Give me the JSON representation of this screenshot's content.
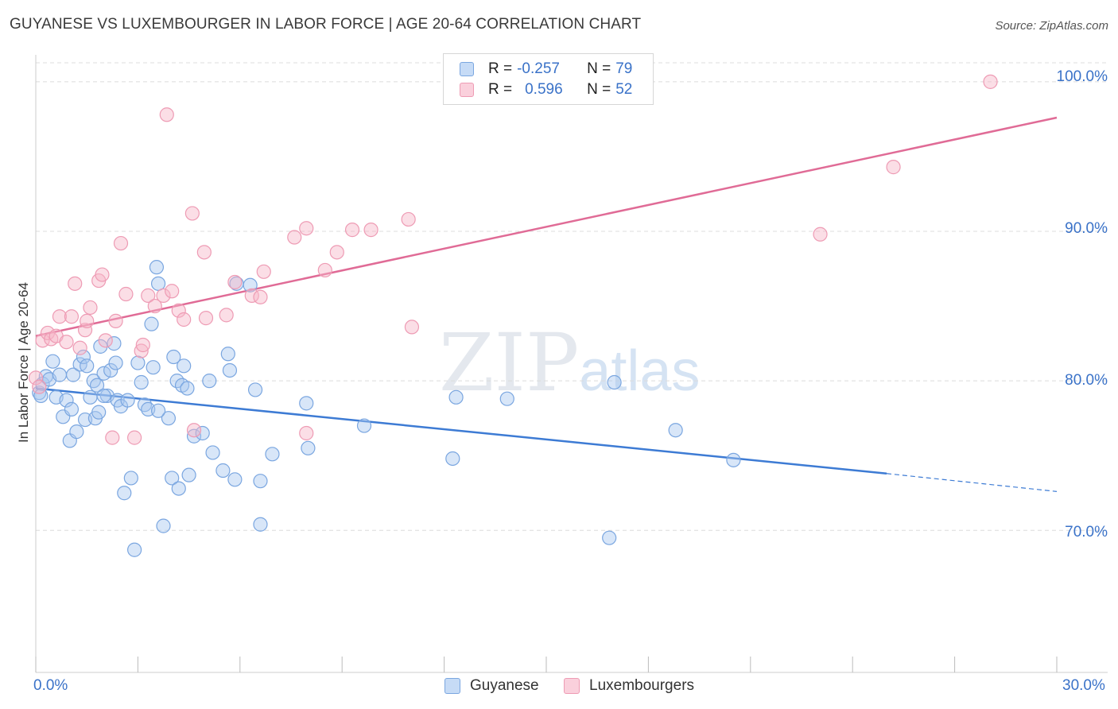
{
  "header": {
    "title": "GUYANESE VS LUXEMBOURGER IN LABOR FORCE | AGE 20-64 CORRELATION CHART",
    "source": "Source: ZipAtlas.com"
  },
  "watermark": {
    "zip": "ZIP",
    "atlas": "atlas"
  },
  "legend": {
    "rows": [
      {
        "r_label": "R =",
        "r_value": "-0.257",
        "n_label": "N =",
        "n_value": "79",
        "color": "#a9c8f0"
      },
      {
        "r_label": "R =",
        "r_value": "0.596",
        "n_label": "N =",
        "n_value": "52",
        "color": "#f7b6c8"
      }
    ]
  },
  "axes": {
    "ylabel": "In Labor Force | Age 20-64",
    "x_ticks": [
      "0.0%",
      "30.0%"
    ],
    "y_ticks": [
      "100.0%",
      "90.0%",
      "80.0%",
      "70.0%"
    ]
  },
  "series_legend": [
    {
      "name": "Guyanese",
      "color": "#a9c8f0"
    },
    {
      "name": "Luxembourgers",
      "color": "#f7b6c8"
    }
  ],
  "chart_data": {
    "type": "scatter",
    "title": "GUYANESE VS LUXEMBOURGER IN LABOR FORCE | AGE 20-64 CORRELATION CHART",
    "xlabel": "",
    "ylabel": "In Labor Force | Age 20-64",
    "xlim": [
      0,
      30
    ],
    "ylim": [
      60.5,
      101.8
    ],
    "y_gridlines": [
      70,
      80,
      90,
      100
    ],
    "grid": true,
    "legend_position": "top-center",
    "series": [
      {
        "name": "Guyanese",
        "color": "#6fa0e0",
        "points": [
          [
            0.1,
            79.2
          ],
          [
            0.2,
            79.8
          ],
          [
            0.3,
            80.3
          ],
          [
            0.4,
            80.1
          ],
          [
            0.5,
            81.3
          ],
          [
            0.6,
            78.9
          ],
          [
            0.7,
            80.4
          ],
          [
            0.8,
            77.6
          ],
          [
            0.9,
            78.7
          ],
          [
            1.0,
            76.0
          ],
          [
            1.05,
            78.1
          ],
          [
            1.1,
            80.4
          ],
          [
            1.2,
            76.6
          ],
          [
            1.3,
            81.1
          ],
          [
            1.4,
            81.6
          ],
          [
            1.45,
            77.4
          ],
          [
            1.5,
            81.0
          ],
          [
            1.6,
            78.9
          ],
          [
            1.7,
            80.0
          ],
          [
            1.75,
            77.5
          ],
          [
            1.8,
            79.7
          ],
          [
            1.85,
            77.9
          ],
          [
            1.9,
            82.3
          ],
          [
            2.0,
            80.5
          ],
          [
            2.1,
            79.0
          ],
          [
            2.2,
            80.7
          ],
          [
            2.3,
            82.5
          ],
          [
            2.35,
            81.2
          ],
          [
            2.4,
            78.7
          ],
          [
            2.5,
            78.3
          ],
          [
            2.6,
            72.5
          ],
          [
            2.7,
            78.7
          ],
          [
            2.8,
            73.5
          ],
          [
            2.9,
            68.7
          ],
          [
            3.0,
            81.2
          ],
          [
            3.1,
            79.9
          ],
          [
            3.2,
            78.4
          ],
          [
            3.3,
            78.1
          ],
          [
            3.4,
            83.8
          ],
          [
            3.45,
            80.9
          ],
          [
            3.55,
            87.6
          ],
          [
            3.6,
            86.5
          ],
          [
            3.75,
            70.3
          ],
          [
            3.9,
            77.5
          ],
          [
            4.0,
            73.5
          ],
          [
            4.05,
            81.6
          ],
          [
            4.15,
            80.0
          ],
          [
            4.2,
            72.8
          ],
          [
            4.3,
            79.7
          ],
          [
            4.35,
            81.0
          ],
          [
            4.45,
            79.5
          ],
          [
            4.5,
            73.7
          ],
          [
            4.65,
            76.3
          ],
          [
            4.9,
            76.5
          ],
          [
            5.1,
            80.0
          ],
          [
            5.2,
            75.2
          ],
          [
            5.5,
            74.0
          ],
          [
            5.7,
            80.7
          ],
          [
            5.65,
            81.8
          ],
          [
            5.85,
            73.4
          ],
          [
            5.9,
            86.5
          ],
          [
            6.3,
            86.4
          ],
          [
            6.45,
            79.4
          ],
          [
            6.6,
            73.3
          ],
          [
            6.6,
            70.4
          ],
          [
            6.95,
            75.1
          ],
          [
            7.95,
            78.5
          ],
          [
            8.0,
            75.5
          ],
          [
            9.65,
            77.0
          ],
          [
            12.25,
            74.8
          ],
          [
            12.35,
            78.9
          ],
          [
            13.85,
            78.8
          ],
          [
            16.85,
            69.5
          ],
          [
            17.0,
            79.9
          ],
          [
            18.8,
            76.7
          ],
          [
            20.5,
            74.7
          ],
          [
            0.15,
            79.0
          ],
          [
            2.0,
            79.0
          ],
          [
            3.6,
            78.0
          ]
        ],
        "trendline": {
          "x": [
            0,
            25
          ],
          "y": [
            79.5,
            73.8
          ],
          "dashed_extension": {
            "x": [
              25,
              30
            ],
            "y": [
              73.8,
              72.6
            ]
          }
        }
      },
      {
        "name": "Luxembourgers",
        "color": "#f09ab5",
        "points": [
          [
            0.0,
            80.2
          ],
          [
            0.1,
            79.6
          ],
          [
            0.2,
            82.7
          ],
          [
            0.35,
            83.2
          ],
          [
            0.45,
            82.8
          ],
          [
            0.6,
            83.0
          ],
          [
            0.7,
            84.3
          ],
          [
            0.9,
            82.6
          ],
          [
            1.05,
            84.3
          ],
          [
            1.15,
            86.5
          ],
          [
            1.3,
            82.2
          ],
          [
            1.45,
            83.4
          ],
          [
            1.5,
            84.0
          ],
          [
            1.6,
            84.9
          ],
          [
            1.85,
            86.7
          ],
          [
            1.95,
            87.1
          ],
          [
            2.05,
            82.7
          ],
          [
            2.25,
            76.2
          ],
          [
            2.35,
            84.0
          ],
          [
            2.5,
            89.2
          ],
          [
            2.65,
            85.8
          ],
          [
            2.9,
            76.2
          ],
          [
            3.1,
            82.0
          ],
          [
            3.15,
            82.4
          ],
          [
            3.3,
            85.7
          ],
          [
            3.5,
            85.0
          ],
          [
            3.75,
            85.7
          ],
          [
            3.85,
            97.8
          ],
          [
            4.0,
            86.0
          ],
          [
            4.2,
            84.7
          ],
          [
            4.35,
            84.1
          ],
          [
            4.6,
            91.2
          ],
          [
            4.65,
            76.7
          ],
          [
            4.95,
            88.6
          ],
          [
            5.0,
            84.2
          ],
          [
            5.6,
            84.4
          ],
          [
            5.85,
            86.6
          ],
          [
            6.35,
            85.7
          ],
          [
            6.6,
            85.6
          ],
          [
            6.7,
            87.3
          ],
          [
            7.6,
            89.6
          ],
          [
            7.95,
            90.2
          ],
          [
            7.95,
            76.5
          ],
          [
            8.5,
            87.4
          ],
          [
            8.85,
            88.6
          ],
          [
            9.3,
            90.1
          ],
          [
            9.85,
            90.1
          ],
          [
            10.95,
            90.8
          ],
          [
            11.05,
            83.6
          ],
          [
            23.05,
            89.8
          ],
          [
            25.2,
            94.3
          ],
          [
            28.05,
            100.0
          ]
        ],
        "trendline": {
          "x": [
            0,
            30
          ],
          "y": [
            83.0,
            97.6
          ]
        }
      }
    ]
  }
}
